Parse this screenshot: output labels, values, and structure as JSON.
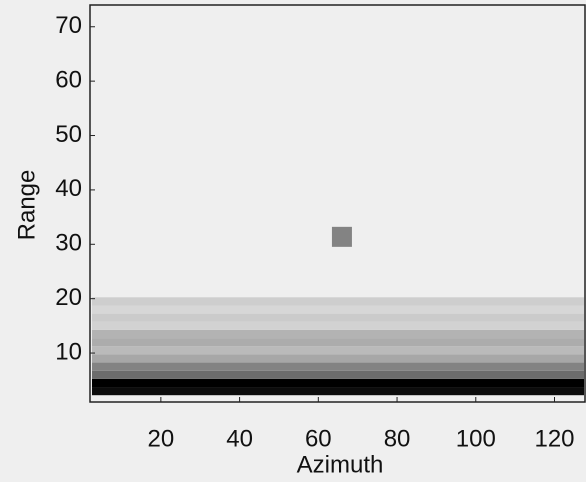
{
  "chart_data": {
    "type": "heatmap",
    "x_label": "Azimuth",
    "y_label": "Range",
    "xlim": [
      2,
      128
    ],
    "ylim": [
      1,
      74
    ],
    "xticks": [
      20,
      40,
      60,
      80,
      100,
      120
    ],
    "yticks": [
      10,
      20,
      30,
      40,
      50,
      60,
      70
    ],
    "y": [
      3,
      4.5,
      6,
      7.5,
      9,
      10.5,
      12,
      13.5,
      15,
      16.5,
      18,
      19.5
    ],
    "values": [
      0.95,
      1.0,
      0.55,
      0.45,
      0.3,
      0.22,
      0.28,
      0.25,
      0.12,
      0.15,
      0.1,
      0.14
    ],
    "spot": {
      "x": 66,
      "y": 31,
      "value": 0.45
    },
    "background": "#efefef",
    "color": "#000000"
  }
}
